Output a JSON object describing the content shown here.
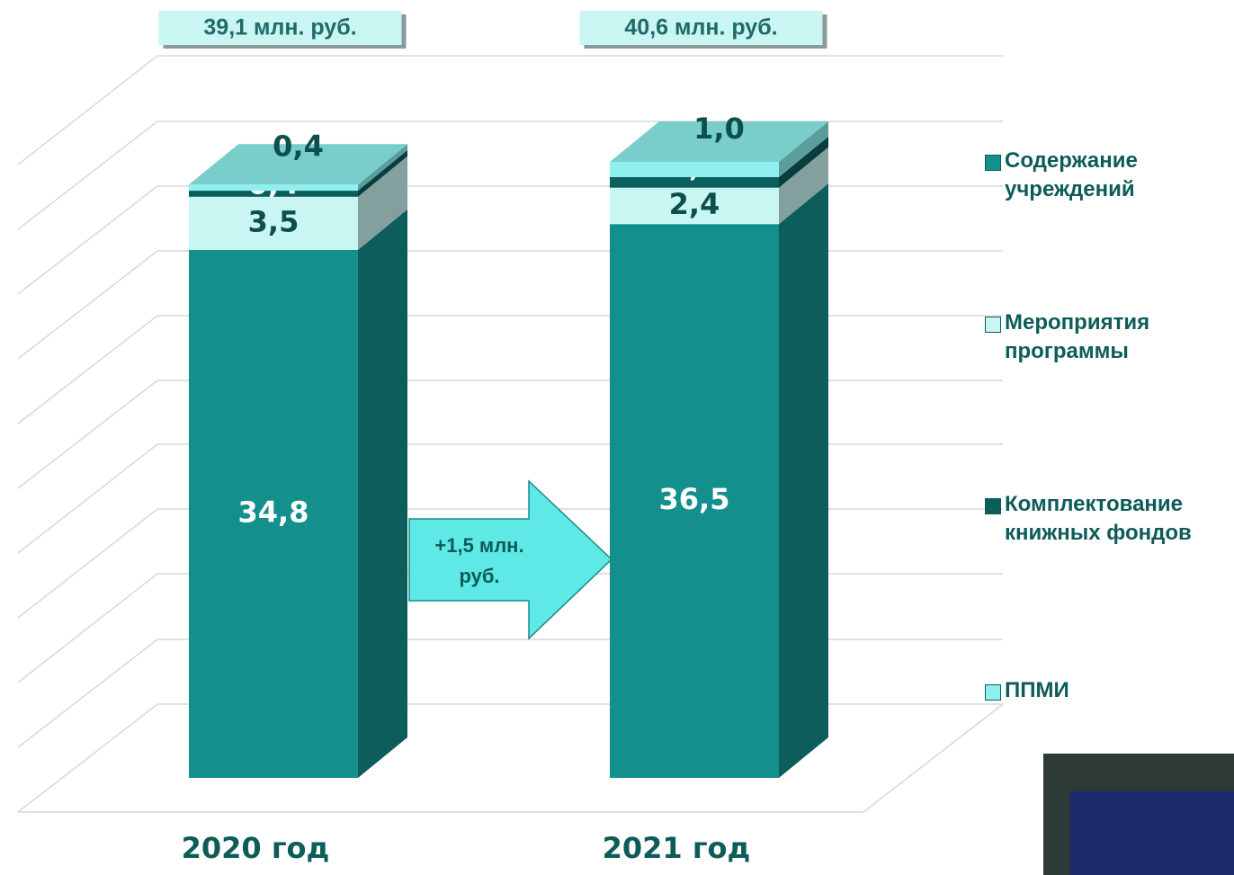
{
  "chart_data": {
    "type": "bar3d_stacked",
    "categories": [
      "2020 год",
      "2021 год"
    ],
    "totals": [
      39.1,
      40.6
    ],
    "total_labels": [
      "39,1 млн. руб.",
      "40,6 млн. руб."
    ],
    "annotation": "+1,5 млн. руб.",
    "series": [
      {
        "name": "Содержание учреждений",
        "color": "#138f8c",
        "values": [
          34.8,
          36.5
        ],
        "value_labels": [
          "34,8",
          "36,5"
        ]
      },
      {
        "name": "Мероприятия программы",
        "color": "#c9f5f3",
        "values": [
          3.5,
          2.4
        ],
        "value_labels": [
          "3,5",
          "2,4"
        ]
      },
      {
        "name": "Комплектование книжных фондов",
        "color": "#0b5e5c",
        "values": [
          0.4,
          0.7
        ],
        "value_labels": [
          "0,4",
          "0,7"
        ]
      },
      {
        "name": "ППМИ",
        "color": "#8ef1ef",
        "values": [
          0.4,
          1.0
        ],
        "value_labels": [
          "0,4",
          "1,0"
        ]
      }
    ]
  }
}
